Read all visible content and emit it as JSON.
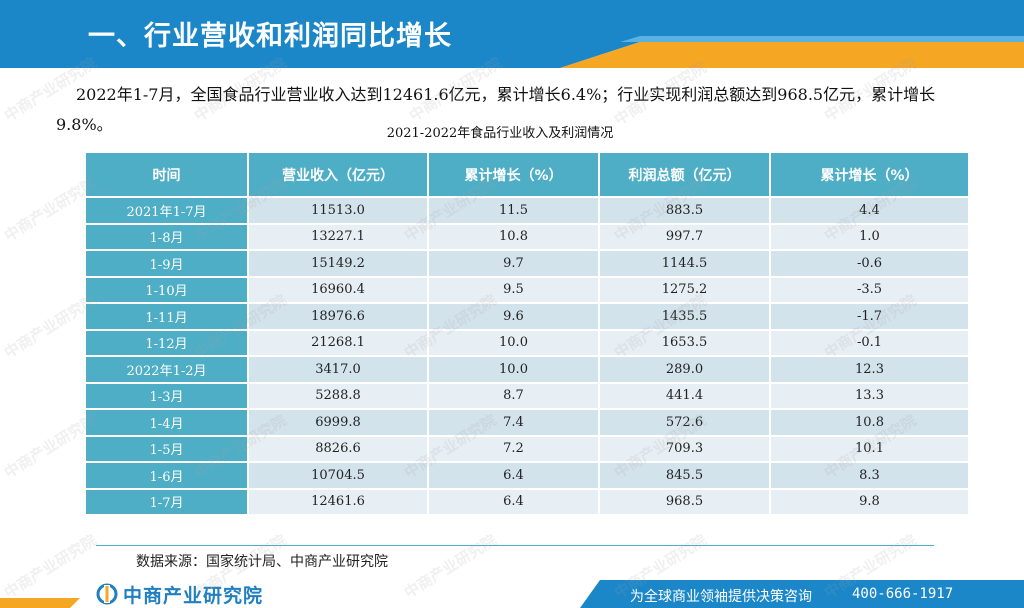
{
  "header": {
    "title": "一、行业营收和利润同比增长"
  },
  "summary": "2022年1-7月，全国食品行业营业收入达到12461.6亿元，累计增长6.4%；行业实现利润总额达到968.5亿元，累计增长9.8%。",
  "table": {
    "caption": "2021-2022年食品行业收入及利润情况",
    "headers": [
      "时间",
      "营业收入（亿元）",
      "累计增长（%）",
      "利润总额（亿元）",
      "累计增长（%）"
    ],
    "rows": [
      [
        "2021年1-7月",
        "11513.0",
        "11.5",
        "883.5",
        "4.4"
      ],
      [
        "1-8月",
        "13227.1",
        "10.8",
        "997.7",
        "1.0"
      ],
      [
        "1-9月",
        "15149.2",
        "9.7",
        "1144.5",
        "-0.6"
      ],
      [
        "1-10月",
        "16960.4",
        "9.5",
        "1275.2",
        "-3.5"
      ],
      [
        "1-11月",
        "18976.6",
        "9.6",
        "1435.5",
        "-1.7"
      ],
      [
        "1-12月",
        "21268.1",
        "10.0",
        "1653.5",
        "-0.1"
      ],
      [
        "2022年1-2月",
        "3417.0",
        "10.0",
        "289.0",
        "12.3"
      ],
      [
        "1-3月",
        "5288.8",
        "8.7",
        "441.4",
        "13.3"
      ],
      [
        "1-4月",
        "6999.8",
        "7.4",
        "572.6",
        "10.8"
      ],
      [
        "1-5月",
        "8826.6",
        "7.2",
        "709.3",
        "10.1"
      ],
      [
        "1-6月",
        "10704.5",
        "6.4",
        "845.5",
        "8.3"
      ],
      [
        "1-7月",
        "12461.6",
        "6.4",
        "968.5",
        "9.8"
      ]
    ]
  },
  "source": "数据来源：国家统计局、中商产业研究院",
  "footer": {
    "logo_text": "中商产业研究院",
    "slogan": "为全球商业领袖提供决策咨询",
    "phone": "400-666-1917"
  },
  "watermark": "中商产业研究院",
  "colors": {
    "header_blue": "#1b87c9",
    "accent_orange": "#f5a623",
    "table_header": "#4eaec6",
    "row_light": "#e8eff4",
    "row_dark": "#d3e3ec"
  }
}
